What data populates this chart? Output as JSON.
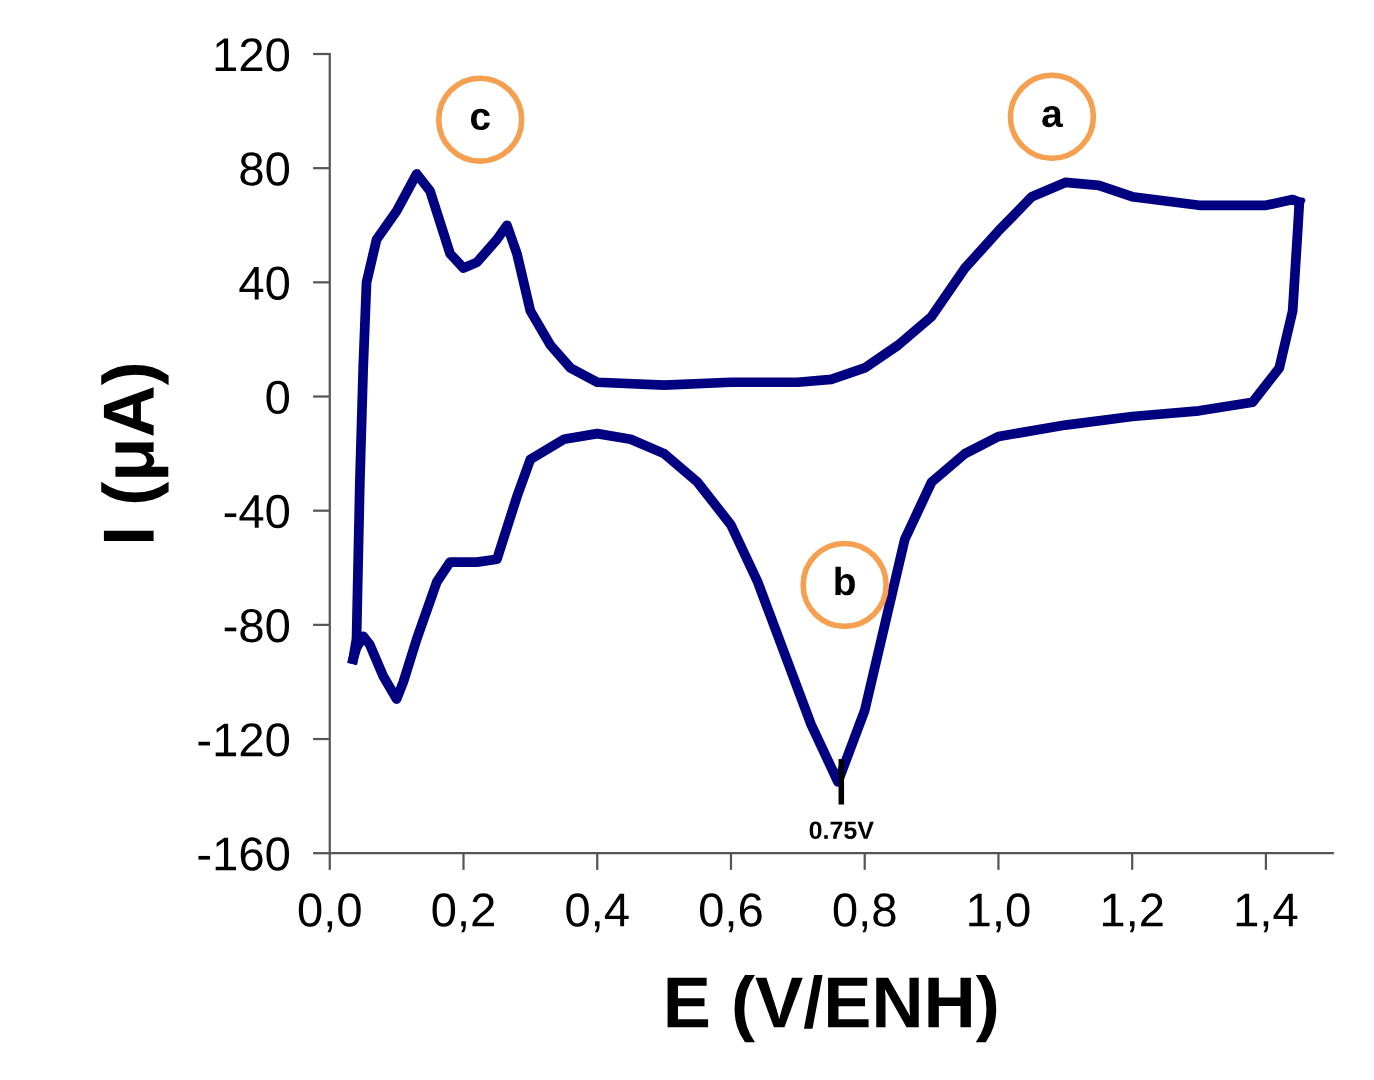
{
  "chart_data": {
    "type": "line",
    "xlabel": "E (V/ENH)",
    "ylabel": "I (μA)",
    "series": [
      {
        "color": "#000080",
        "x": [
          0.035,
          0.04,
          0.045,
          0.05,
          0.055,
          0.07,
          0.1,
          0.13,
          0.15,
          0.18,
          0.2,
          0.22,
          0.25,
          0.265,
          0.28,
          0.3,
          0.33,
          0.36,
          0.4,
          0.5,
          0.6,
          0.7,
          0.75,
          0.8,
          0.85,
          0.9,
          0.95,
          1.0,
          1.05,
          1.1,
          1.15,
          1.2,
          1.3,
          1.4,
          1.44,
          1.45
        ],
        "values": [
          -92,
          -85,
          -30,
          10,
          40,
          55,
          65,
          78,
          72,
          50,
          45,
          47,
          55,
          60,
          50,
          30,
          18,
          10,
          5,
          4,
          5,
          5,
          6,
          10,
          18,
          28,
          45,
          58,
          70,
          75,
          74,
          70,
          67,
          67,
          69,
          68
        ]
      },
      {
        "color": "#000080",
        "x": [
          1.45,
          1.448,
          1.44,
          1.42,
          1.38,
          1.3,
          1.2,
          1.1,
          1.0,
          0.95,
          0.9,
          0.86,
          0.83,
          0.8,
          0.76,
          0.72,
          0.68,
          0.64,
          0.6,
          0.55,
          0.5,
          0.45,
          0.4,
          0.35,
          0.3,
          0.28,
          0.25,
          0.22,
          0.18,
          0.16,
          0.13,
          0.11,
          0.1,
          0.08,
          0.06,
          0.05,
          0.04,
          0.035
        ],
        "values": [
          68,
          60,
          30,
          10,
          -2,
          -5,
          -7,
          -10,
          -14,
          -20,
          -30,
          -50,
          -80,
          -110,
          -135,
          -115,
          -90,
          -65,
          -45,
          -30,
          -20,
          -15,
          -13,
          -15,
          -22,
          -35,
          -57,
          -58,
          -58,
          -65,
          -85,
          -100,
          -106,
          -98,
          -87,
          -84,
          -88,
          -92
        ]
      }
    ],
    "xlim": [
      0,
      1.5
    ],
    "xticks": [
      {
        "value": 0,
        "label": "0,0"
      },
      {
        "value": 0.2,
        "label": "0,2"
      },
      {
        "value": 0.4,
        "label": "0,4"
      },
      {
        "value": 0.6,
        "label": "0,6"
      },
      {
        "value": 0.8,
        "label": "0,8"
      },
      {
        "value": 1.0,
        "label": "1,0"
      },
      {
        "value": 1.2,
        "label": "1,2"
      },
      {
        "value": 1.4,
        "label": "1,4"
      }
    ],
    "ylim": [
      -160,
      120
    ],
    "yticks": [
      -160,
      -120,
      -80,
      -40,
      0,
      40,
      80,
      120
    ],
    "grid": false,
    "legend": false,
    "marker": "none",
    "line_style": "solid",
    "annotations": [
      {
        "text": "a",
        "x": 1.08,
        "y": 98
      },
      {
        "text": "b",
        "x": 0.77,
        "y": -66
      },
      {
        "text": "c",
        "x": 0.225,
        "y": 97
      },
      {
        "text": "0.75V",
        "x": 0.765,
        "y": -135
      }
    ]
  }
}
